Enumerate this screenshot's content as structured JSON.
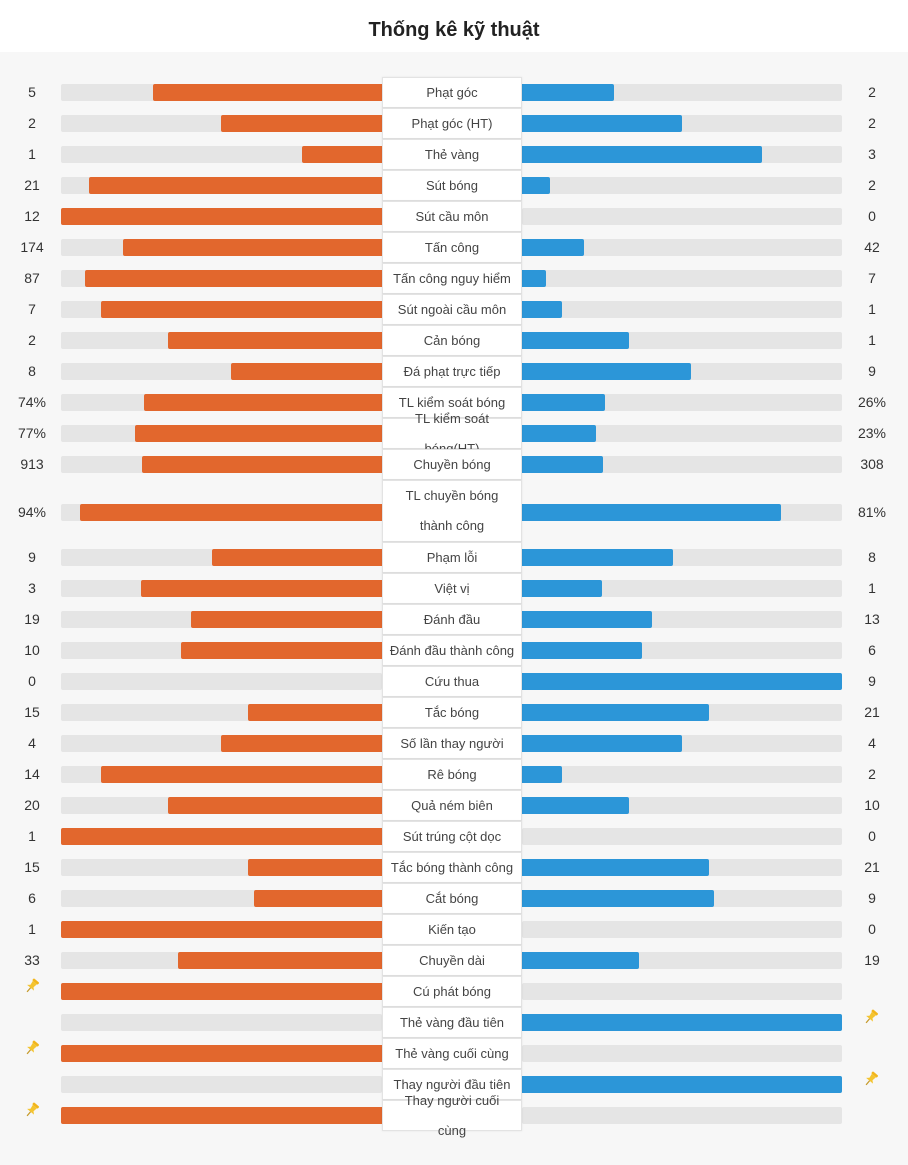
{
  "page": {
    "title": "Thống kê kỹ thuật"
  },
  "colors": {
    "home": "#e2672d",
    "away": "#2c96d8",
    "track": "#e5e5e5",
    "pin": "#f4c430"
  },
  "stats": [
    {
      "label": "Phạt góc",
      "home": "5",
      "away": "2",
      "home_ratio": 0.714,
      "away_ratio": 0.286
    },
    {
      "label": "Phạt góc (HT)",
      "home": "2",
      "away": "2",
      "home_ratio": 0.5,
      "away_ratio": 0.5
    },
    {
      "label": "Thẻ vàng",
      "home": "1",
      "away": "3",
      "home_ratio": 0.25,
      "away_ratio": 0.75
    },
    {
      "label": "Sút bóng",
      "home": "21",
      "away": "2",
      "home_ratio": 0.913,
      "away_ratio": 0.087
    },
    {
      "label": "Sút cầu môn",
      "home": "12",
      "away": "0",
      "home_ratio": 1.0,
      "away_ratio": 0.0
    },
    {
      "label": "Tấn công",
      "home": "174",
      "away": "42",
      "home_ratio": 0.806,
      "away_ratio": 0.194
    },
    {
      "label": "Tấn công nguy hiểm",
      "home": "87",
      "away": "7",
      "home_ratio": 0.926,
      "away_ratio": 0.074
    },
    {
      "label": "Sút ngoài cầu môn",
      "home": "7",
      "away": "1",
      "home_ratio": 0.875,
      "away_ratio": 0.125
    },
    {
      "label": "Cản bóng",
      "home": "2",
      "away": "1",
      "home_ratio": 0.667,
      "away_ratio": 0.333
    },
    {
      "label": "Đá phạt trực tiếp",
      "home": "8",
      "away": "9",
      "home_ratio": 0.471,
      "away_ratio": 0.529
    },
    {
      "label": "TL kiểm soát bóng",
      "home": "74%",
      "away": "26%",
      "home_ratio": 0.74,
      "away_ratio": 0.26
    },
    {
      "label": "TL kiểm soát bóng(HT)",
      "home": "77%",
      "away": "23%",
      "home_ratio": 0.77,
      "away_ratio": 0.23
    },
    {
      "label": "Chuyền bóng",
      "home": "913",
      "away": "308",
      "home_ratio": 0.748,
      "away_ratio": 0.252
    },
    {
      "label": "TL chuyền bóng thành công",
      "home": "94%",
      "away": "81%",
      "home_ratio": 0.94,
      "away_ratio": 0.81
    },
    {
      "label": "Phạm lỗi",
      "home": "9",
      "away": "8",
      "home_ratio": 0.529,
      "away_ratio": 0.471
    },
    {
      "label": "Việt vị",
      "home": "3",
      "away": "1",
      "home_ratio": 0.75,
      "away_ratio": 0.25
    },
    {
      "label": "Đánh đầu",
      "home": "19",
      "away": "13",
      "home_ratio": 0.594,
      "away_ratio": 0.406
    },
    {
      "label": "Đánh đầu thành công",
      "home": "10",
      "away": "6",
      "home_ratio": 0.625,
      "away_ratio": 0.375
    },
    {
      "label": "Cứu thua",
      "home": "0",
      "away": "9",
      "home_ratio": 0.0,
      "away_ratio": 1.0
    },
    {
      "label": "Tắc bóng",
      "home": "15",
      "away": "21",
      "home_ratio": 0.417,
      "away_ratio": 0.583
    },
    {
      "label": "Số lần thay người",
      "home": "4",
      "away": "4",
      "home_ratio": 0.5,
      "away_ratio": 0.5
    },
    {
      "label": "Rê bóng",
      "home": "14",
      "away": "2",
      "home_ratio": 0.875,
      "away_ratio": 0.125
    },
    {
      "label": "Quả ném biên",
      "home": "20",
      "away": "10",
      "home_ratio": 0.667,
      "away_ratio": 0.333
    },
    {
      "label": "Sút trúng cột dọc",
      "home": "1",
      "away": "0",
      "home_ratio": 1.0,
      "away_ratio": 0.0
    },
    {
      "label": "Tắc bóng thành công",
      "home": "15",
      "away": "21",
      "home_ratio": 0.417,
      "away_ratio": 0.583
    },
    {
      "label": "Cắt bóng",
      "home": "6",
      "away": "9",
      "home_ratio": 0.4,
      "away_ratio": 0.6
    },
    {
      "label": "Kiến tạo",
      "home": "1",
      "away": "0",
      "home_ratio": 1.0,
      "away_ratio": 0.0
    },
    {
      "label": "Chuyền dài",
      "home": "33",
      "away": "19",
      "home_ratio": 0.635,
      "away_ratio": 0.365
    },
    {
      "label": "Cú phát bóng",
      "home": "",
      "away": "",
      "home_ratio": 1.0,
      "away_ratio": 0.0,
      "pin": "home"
    },
    {
      "label": "Thẻ vàng đầu tiên",
      "home": "",
      "away": "",
      "home_ratio": 0.0,
      "away_ratio": 1.0,
      "pin": "away"
    },
    {
      "label": "Thẻ vàng cuối cùng",
      "home": "",
      "away": "",
      "home_ratio": 1.0,
      "away_ratio": 0.0,
      "pin": "home"
    },
    {
      "label": "Thay người đầu tiên",
      "home": "",
      "away": "",
      "home_ratio": 0.0,
      "away_ratio": 1.0,
      "pin": "away"
    },
    {
      "label": "Thay người cuối cùng",
      "home": "",
      "away": "",
      "home_ratio": 1.0,
      "away_ratio": 0.0,
      "pin": "home"
    }
  ]
}
